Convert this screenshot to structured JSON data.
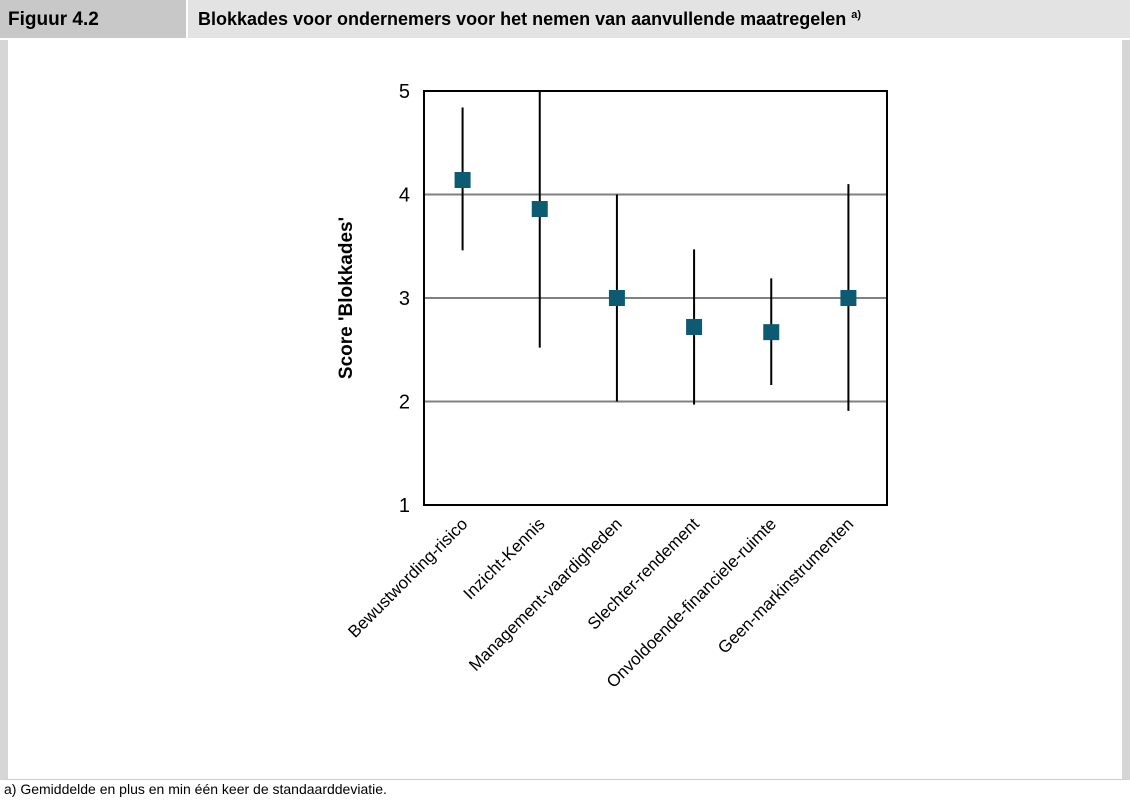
{
  "header": {
    "figure_label": "Figuur 4.2",
    "title": "Blokkades voor ondernemers voor het nemen van aanvullende maatregelen",
    "title_superscript": "a)"
  },
  "footnote": "a) Gemiddelde en plus en min één keer de standaarddeviatie.",
  "colors": {
    "marker": "#0d5a73",
    "gridline": "#808080",
    "errorbar": "#000000"
  },
  "chart_data": {
    "type": "scatter",
    "title": "",
    "xlabel": "",
    "ylabel": "Score 'Blokkades'",
    "ylim": [
      1,
      5
    ],
    "yticks": [
      1,
      2,
      3,
      4,
      5
    ],
    "grid": true,
    "categories": [
      "Bewustwording-risico",
      "Inzicht-Kennis",
      "Management-vaardigheden",
      "Slechter-rendement",
      "Onvoldoende-financiele-ruimte",
      "Geen-markinstrumenten"
    ],
    "series": [
      {
        "values": [
          4.14,
          3.86,
          3.0,
          2.72,
          2.67,
          3.0
        ],
        "error_low": [
          3.46,
          2.52,
          2.0,
          1.97,
          2.16,
          1.91
        ],
        "error_high": [
          4.84,
          5.0,
          4.0,
          3.47,
          3.19,
          4.1
        ]
      }
    ]
  }
}
